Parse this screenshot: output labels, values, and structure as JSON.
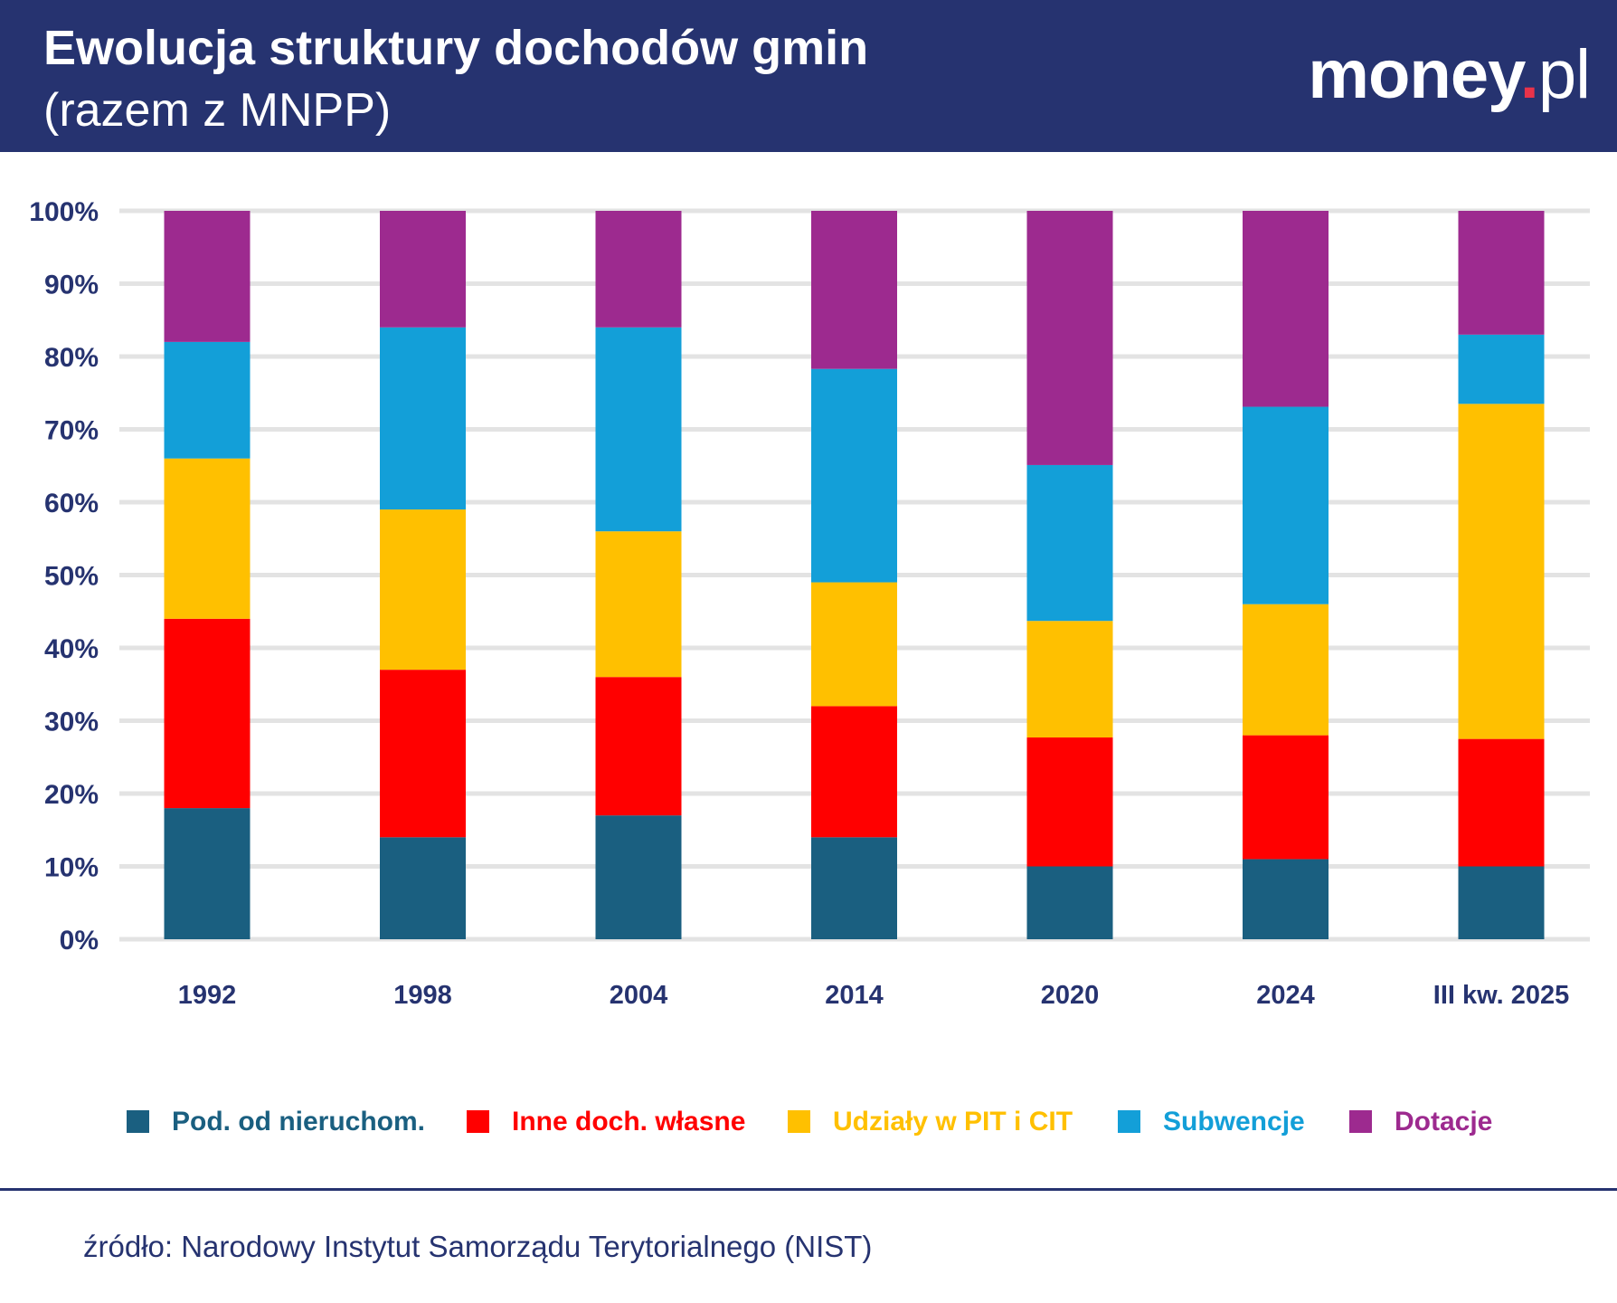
{
  "header": {
    "title": "Ewolucja struktury dochodów gmin",
    "subtitle": "(razem z MNPP)",
    "logo": {
      "brand": "money",
      "dot": ".",
      "tld": "pl"
    }
  },
  "colors": {
    "header_bg": "#263370",
    "axis_text": "#263370",
    "grid": "#e3e3e3"
  },
  "chart_data": {
    "type": "bar",
    "stacked": true,
    "categories": [
      "1992",
      "1998",
      "2004",
      "2014",
      "2020",
      "2024",
      "III kw. 2025"
    ],
    "y_ticks": [
      "0%",
      "10%",
      "20%",
      "30%",
      "40%",
      "50%",
      "60%",
      "70%",
      "80%",
      "90%",
      "100%"
    ],
    "ylim": [
      0,
      100
    ],
    "grid": true,
    "legend_position": "bottom",
    "series": [
      {
        "name": "Pod. od nieruchom.",
        "color": "#1a5f80",
        "values": [
          18,
          14,
          17,
          14,
          10,
          11,
          10
        ]
      },
      {
        "name": "Inne doch. własne",
        "color": "#ff0000",
        "values": [
          26,
          23,
          19,
          18,
          17.7,
          17,
          17.5
        ]
      },
      {
        "name": "Udziały w PIT i CIT",
        "color": "#ffc000",
        "values": [
          22,
          22,
          20,
          17,
          16,
          18,
          46
        ]
      },
      {
        "name": "Subwencje",
        "color": "#139fd8",
        "values": [
          16,
          25,
          28,
          29.3,
          21.4,
          27.1,
          9.5
        ]
      },
      {
        "name": "Dotacje",
        "color": "#9d2a8f",
        "values": [
          18,
          16,
          16,
          21.7,
          34.9,
          26.9,
          17
        ]
      }
    ]
  },
  "source": "źródło: Narodowy Instytut Samorządu Terytorialnego (NIST)"
}
